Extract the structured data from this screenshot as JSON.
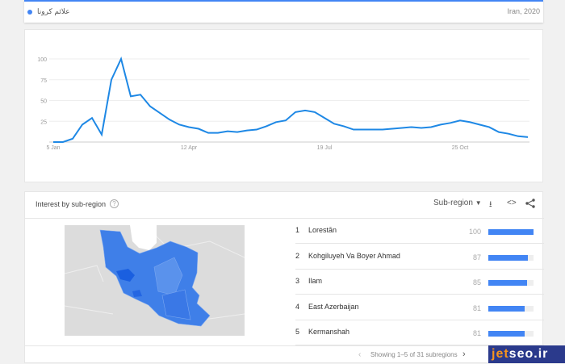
{
  "header": {
    "term": "علائم کرونا",
    "region_year": "Iran, 2020",
    "series_color": "#4285f4"
  },
  "chart_data": {
    "type": "line",
    "title": "",
    "xlabel": "",
    "ylabel": "",
    "x_ticks": [
      "5 Jan",
      "12 Apr",
      "19 Jul",
      "25 Oct"
    ],
    "y_ticks": [
      25,
      50,
      75,
      100
    ],
    "ylim": [
      0,
      100
    ],
    "grid": true,
    "x": "weekly, starting 5 Jan 2020",
    "values": [
      0,
      0,
      4,
      21,
      29,
      9,
      75,
      100,
      55,
      57,
      43,
      35,
      27,
      21,
      18,
      16,
      11,
      11,
      13,
      12,
      14,
      15,
      19,
      24,
      26,
      36,
      38,
      36,
      29,
      22,
      19,
      15,
      15,
      15,
      15,
      16,
      17,
      18,
      17,
      18,
      21,
      23,
      26,
      24,
      21,
      18,
      12,
      10,
      7,
      6
    ],
    "color": "#1e88e5"
  },
  "subregion": {
    "title": "Interest by sub-region",
    "help": "?",
    "selector": "Sub-region",
    "rows": [
      {
        "rank": "1",
        "name": "Lorestān",
        "value": 100
      },
      {
        "rank": "2",
        "name": "Kohgiluyeh Va Boyer Ahmad",
        "value": 87
      },
      {
        "rank": "3",
        "name": "Ilam",
        "value": 85
      },
      {
        "rank": "4",
        "name": "East Azerbaijan",
        "value": 81
      },
      {
        "rank": "5",
        "name": "Kermanshah",
        "value": 81
      }
    ],
    "footer": "Showing 1–5 of 31 subregions"
  },
  "watermark": "jetseo.ir"
}
